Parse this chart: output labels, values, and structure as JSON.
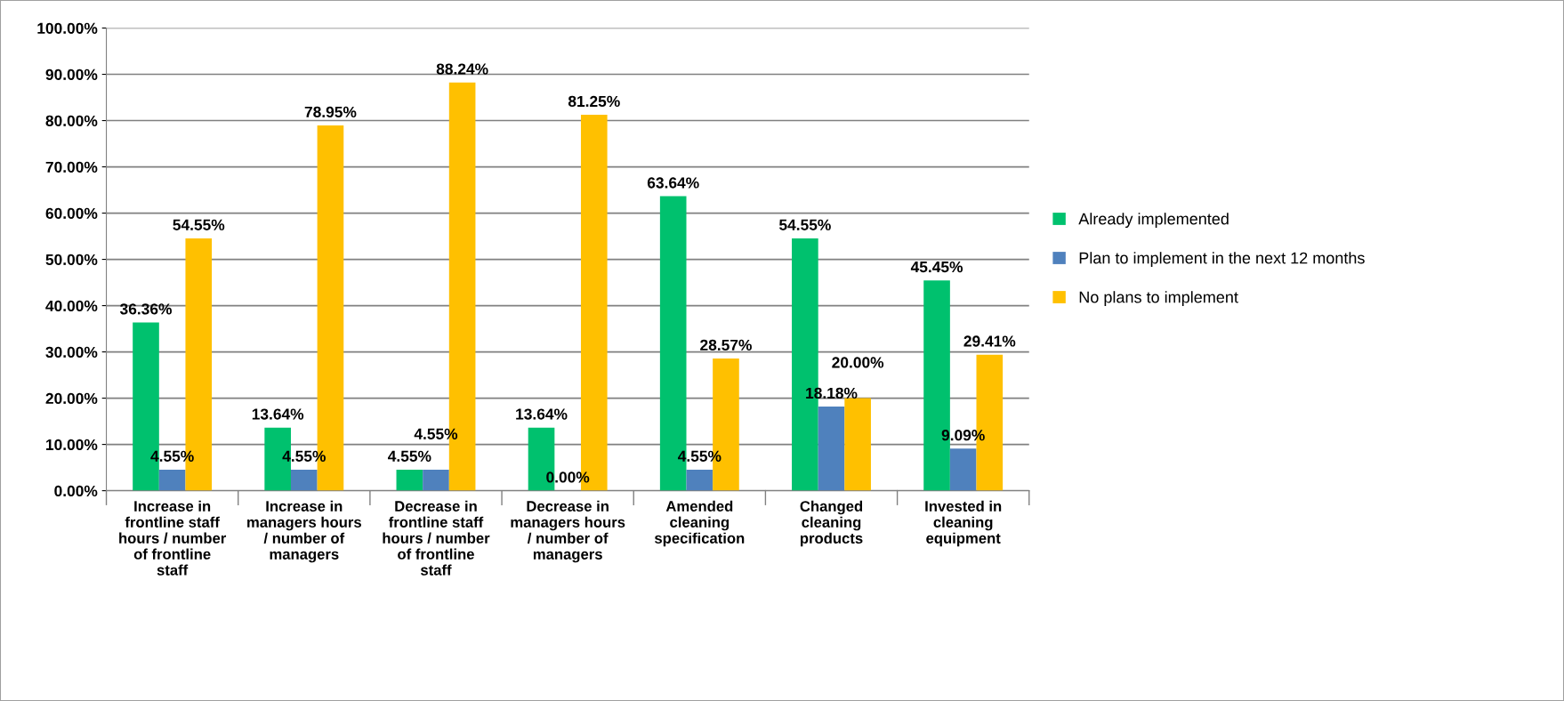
{
  "chart_data": {
    "type": "bar",
    "categories": [
      "Increase in frontline staff hours / number of frontline staff",
      "Increase in managers hours / number of managers",
      "Decrease in frontline staff hours / number of frontline staff",
      "Decrease in managers hours / number of managers",
      "Amended cleaning specification",
      "Changed cleaning products",
      "Invested in cleaning equipment"
    ],
    "series": [
      {
        "name": "Already implemented",
        "color": "#00c16e",
        "values": [
          36.36,
          13.64,
          4.55,
          13.64,
          63.64,
          54.55,
          45.45
        ],
        "value_labels": [
          "36.36%",
          "13.64%",
          "4.55%",
          "13.64%",
          "63.64%",
          "54.55%",
          "45.45%"
        ]
      },
      {
        "name": "Plan to implement in the next 12 months",
        "color": "#4f81bd",
        "values": [
          4.55,
          4.55,
          4.55,
          0.0,
          4.55,
          18.18,
          9.09
        ],
        "value_labels": [
          "4.55%",
          "4.55%",
          "4.55%",
          "0.00%",
          "4.55%",
          "18.18%",
          "9.09%"
        ]
      },
      {
        "name": "No plans to implement",
        "color": "#ffc000",
        "values": [
          54.55,
          78.95,
          88.24,
          81.25,
          28.57,
          20.0,
          29.41
        ],
        "value_labels": [
          "54.55%",
          "78.95%",
          "88.24%",
          "81.25%",
          "28.57%",
          "20.00%",
          "29.41%"
        ]
      }
    ],
    "ylim": [
      0,
      100
    ],
    "yticks": [
      {
        "value": 0,
        "label": "0.00%"
      },
      {
        "value": 10,
        "label": "10.00%"
      },
      {
        "value": 20,
        "label": "20.00%"
      },
      {
        "value": 30,
        "label": "30.00%"
      },
      {
        "value": 40,
        "label": "40.00%"
      },
      {
        "value": 50,
        "label": "50.00%"
      },
      {
        "value": 60,
        "label": "60.00%"
      },
      {
        "value": 70,
        "label": "70.00%"
      },
      {
        "value": 80,
        "label": "80.00%"
      },
      {
        "value": 90,
        "label": "90.00%"
      },
      {
        "value": 100,
        "label": "100.00%"
      }
    ],
    "grid": "y",
    "legend": "right"
  }
}
